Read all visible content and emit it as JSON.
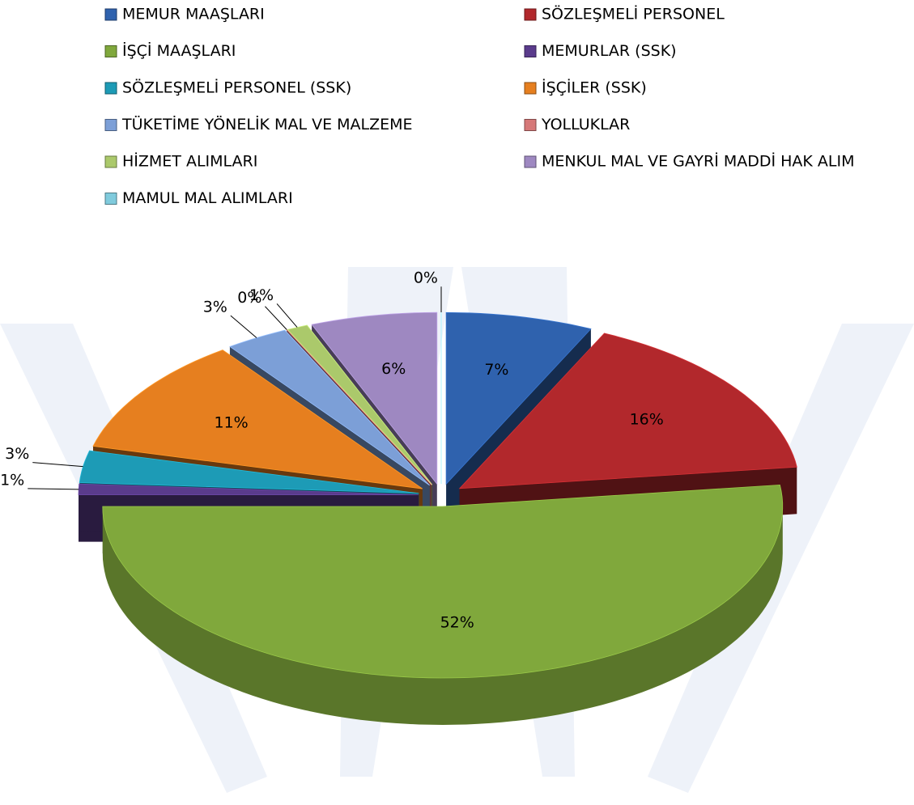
{
  "chart_data": {
    "type": "pie",
    "categories": [
      "MEMUR MAAŞLARI",
      "SÖZLEŞMELİ PERSONEL",
      "İŞÇİ MAAŞLARI",
      "MEMURLAR (SSK)",
      "SÖZLEŞMELİ PERSONEL (SSK)",
      "İŞÇİLER (SSK)",
      "TÜKETİME YÖNELİK MAL VE MALZEME",
      "YOLLUKLAR",
      "HİZMET ALIMLARI",
      "MENKUL MAL VE GAYRİ MADDİ HAK ALIM",
      "MAMUL MAL ALIMLARI"
    ],
    "values": [
      7,
      16,
      52,
      1,
      3,
      11,
      3,
      0,
      1,
      6,
      0
    ],
    "value_labels": [
      "7%",
      "16%",
      "52%",
      "1%",
      "3%",
      "11%",
      "3%",
      "0%",
      "1%",
      "6%",
      "0%"
    ],
    "colors": [
      "#2f62ae",
      "#b2282c",
      "#80a83c",
      "#5a3b8c",
      "#1d9bb6",
      "#e67f1f",
      "#7c9fd7",
      "#d67878",
      "#abc96b",
      "#9e88c1",
      "#80cbdd"
    ],
    "legend": "top"
  }
}
